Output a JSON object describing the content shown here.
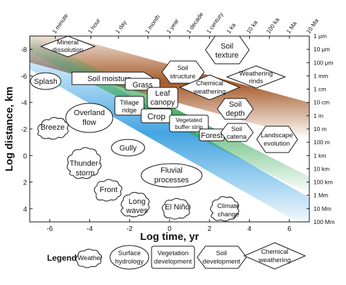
{
  "axes": {
    "xlabel": "Log time, yr",
    "ylabel": "Log distance, km",
    "x_ticks": [
      "-6",
      "-4",
      "-2",
      "0",
      "2",
      "4",
      "6"
    ],
    "y_ticks": [
      "-8",
      "-6",
      "-4",
      "-2",
      "0",
      "2",
      "4"
    ],
    "top_ticks": [
      "1 minute",
      "1 hour",
      "1 day",
      "1 month",
      "1 year",
      "1 decade",
      "1 century",
      "1 ka",
      "10 ka",
      "100 ka",
      "1 Ma",
      "10 Ma"
    ],
    "right_ticks": [
      "1 μm",
      "10 μm",
      "100 μm",
      "1 mm",
      "1 cm",
      "10 cm",
      "1 m",
      "10 m",
      "100 m",
      "1 km",
      "10 km",
      "100 km",
      "1 Mm",
      "10 Mm",
      "100 Mm"
    ]
  },
  "items": {
    "mineral": [
      "Mineral",
      "dissolution"
    ],
    "soil_texture": [
      "Soil",
      "texture"
    ],
    "splash": "Splash",
    "soil_moisture": "Soil moisture",
    "soil_structure": [
      "Soil",
      "structure"
    ],
    "weathering_rinds": [
      "Weathering",
      "rinds"
    ],
    "grass": "Grass",
    "leaf_canopy": [
      "Leaf",
      "canopy"
    ],
    "chemical_weathering": [
      "Chemical",
      "weathering"
    ],
    "tillage_ridge": [
      "Tillage",
      "ridge"
    ],
    "overland_flow": [
      "Overland",
      "flow"
    ],
    "soil_depth": [
      "Soil",
      "depth"
    ],
    "crop": "Crop",
    "vegetated_buffer": [
      "Vegetated",
      "buffer strip"
    ],
    "breeze": "Breeze",
    "forest": "Forest",
    "soil_catena": [
      "Soil",
      "catena"
    ],
    "landscape_evolution": [
      "Landscape",
      "evolution"
    ],
    "gully": "Gully",
    "thunderstorm": [
      "Thunder-",
      "storm"
    ],
    "fluvial": [
      "Fluvial",
      "processes"
    ],
    "front": "Front",
    "long_waves": [
      "Long",
      "waves"
    ],
    "el_nino": "El Niño",
    "climate_change": [
      "Climate",
      "change"
    ]
  },
  "legend": {
    "title": "Legend:",
    "weather": "Weather",
    "surface": [
      "Surface",
      "hydrology"
    ],
    "vegetation": [
      "Vegetation",
      "development"
    ],
    "soil": [
      "Soil",
      "development"
    ],
    "chemical": [
      "Chemical",
      "weathering"
    ]
  },
  "colors": {
    "blue_band": "#3aa0e0",
    "green_band": "#3aa85a",
    "brown_band": "#a0521e"
  }
}
